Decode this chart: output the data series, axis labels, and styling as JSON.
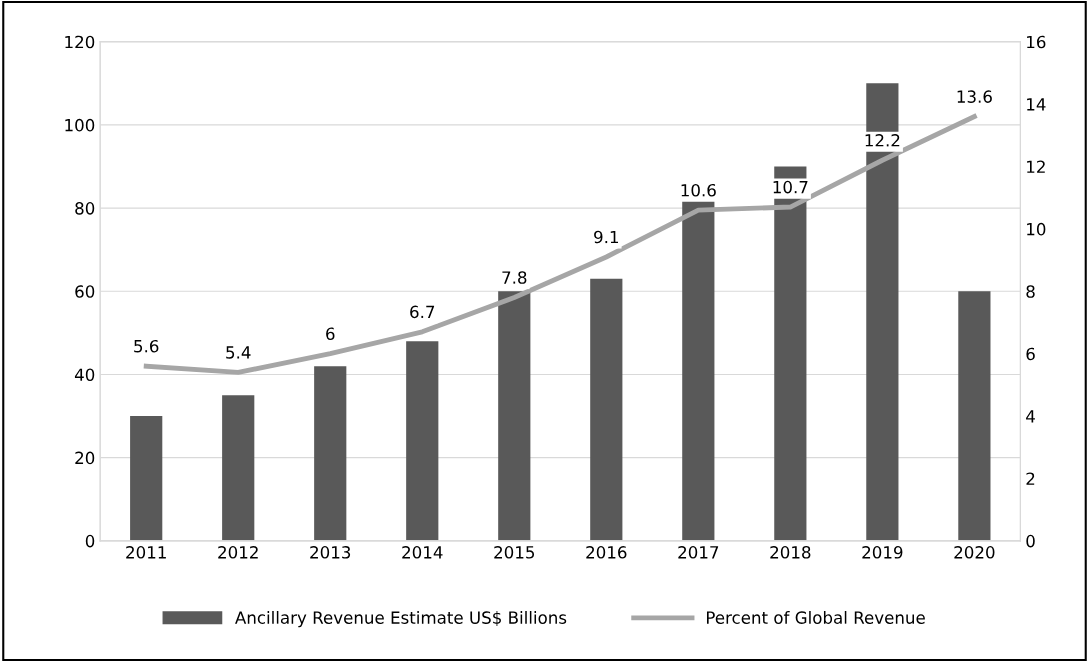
{
  "chart_data": {
    "type": "bar",
    "categories": [
      "2011",
      "2012",
      "2013",
      "2014",
      "2015",
      "2016",
      "2017",
      "2018",
      "2019",
      "2020"
    ],
    "series": [
      {
        "name": "Ancillary Revenue Estimate US$ Billions",
        "color": "#595959",
        "values": [
          30,
          35,
          42,
          48,
          60,
          63,
          82,
          90,
          110,
          60
        ]
      },
      {
        "name": "Percent of Global Revenue",
        "type": "line",
        "axis": "y2",
        "color": "#a6a6a6",
        "values": [
          5.6,
          5.4,
          6,
          6.7,
          7.8,
          9.1,
          10.6,
          10.7,
          12.2,
          13.6
        ],
        "data_labels": true
      }
    ],
    "ylim": [
      0,
      120
    ],
    "yticks": [
      0,
      20,
      40,
      60,
      80,
      100,
      120
    ],
    "y2lim": [
      0,
      16
    ],
    "y2ticks": [
      0,
      2,
      4,
      6,
      8,
      10,
      12,
      14,
      16
    ],
    "grid": "y",
    "legend": "bottom",
    "marker": "none",
    "line_style": "solid"
  }
}
